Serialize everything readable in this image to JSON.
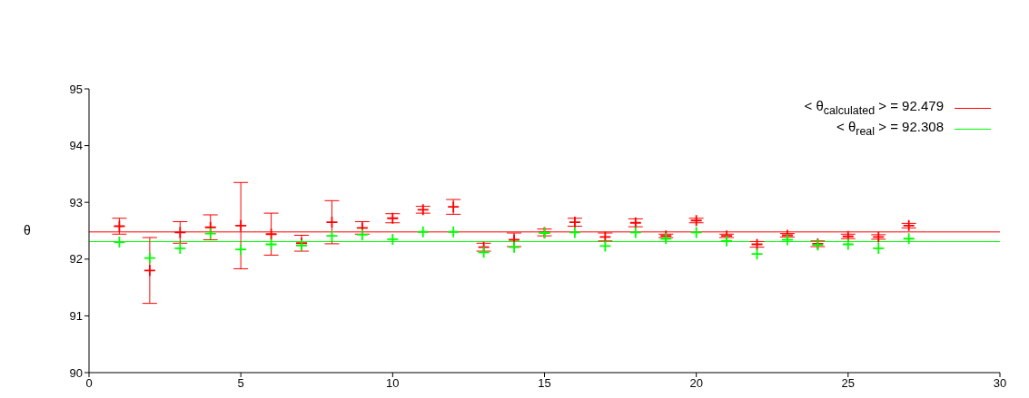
{
  "chart_data": {
    "type": "scatter",
    "ylabel": "θ",
    "xlim": [
      0,
      30
    ],
    "xticks": [
      0,
      5,
      10,
      15,
      20,
      25,
      30
    ],
    "ylim": [
      90,
      95
    ],
    "yticks": [
      90,
      91,
      92,
      93,
      94,
      95
    ],
    "grid": false,
    "legend": "top right",
    "marker": "cross",
    "x": [
      1,
      2,
      3,
      4,
      5,
      6,
      7,
      8,
      9,
      10,
      11,
      12,
      13,
      14,
      15,
      16,
      17,
      18,
      19,
      20,
      21,
      22,
      23,
      24,
      25,
      26,
      27
    ],
    "series": [
      {
        "color": "#ff0000",
        "values": [
          92.58,
          91.8,
          92.47,
          92.56,
          92.59,
          92.44,
          92.28,
          92.65,
          92.55,
          92.72,
          92.87,
          92.92,
          92.21,
          92.34,
          92.47,
          92.65,
          92.39,
          92.64,
          92.41,
          92.68,
          92.41,
          92.26,
          92.42,
          92.27,
          92.4,
          92.39,
          92.59
        ],
        "errors": [
          0.14,
          0.58,
          0.19,
          0.22,
          0.76,
          0.37,
          0.14,
          0.38,
          0.11,
          0.08,
          0.06,
          0.13,
          0.07,
          0.12,
          0.06,
          0.07,
          0.07,
          0.07,
          0.03,
          0.04,
          0.03,
          0.05,
          0.03,
          0.05,
          0.04,
          0.04,
          0.04
        ]
      },
      {
        "color": "#00ff00",
        "values": [
          92.3,
          92.02,
          92.19,
          92.45,
          92.17,
          92.26,
          92.24,
          92.41,
          92.43,
          92.35,
          92.48,
          92.48,
          92.12,
          92.21,
          92.46,
          92.47,
          92.23,
          92.47,
          92.36,
          92.47,
          92.32,
          92.09,
          92.34,
          92.25,
          92.26,
          92.19,
          92.36
        ]
      }
    ],
    "ref_lines": [
      {
        "axis": "y",
        "value": 92.479,
        "label": "< θ$_{calculated}$ > = 92.479",
        "color": "#ff0000"
      },
      {
        "axis": "y",
        "value": 92.308,
        "label": "< θ$_{real}$ > = 92.308",
        "color": "#00ff00"
      }
    ]
  }
}
